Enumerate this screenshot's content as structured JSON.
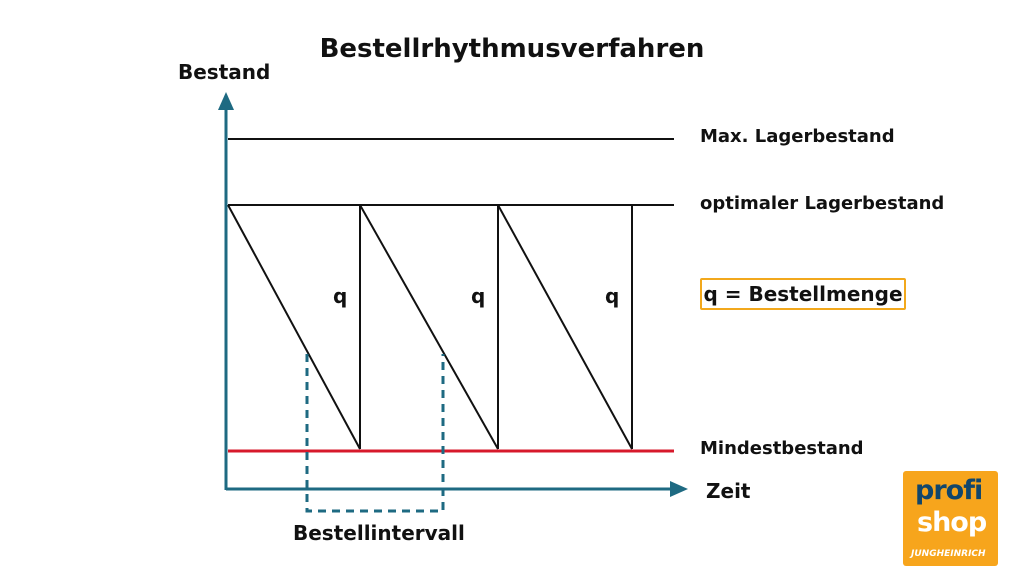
{
  "title": "Bestellrhythmusverfahren",
  "axes": {
    "y_label": "Bestand",
    "x_label": "Zeit"
  },
  "levels": {
    "max": "Max. Lagerbestand",
    "optimal": "optimaler Lagerbestand",
    "minimum": "Mindestbestand"
  },
  "cycle_labels": [
    "q",
    "q",
    "q"
  ],
  "legend": "q = Bestellmenge",
  "interval_label": "Bestellintervall",
  "logo": {
    "line1": "profi",
    "line2": "shop",
    "line3": "JUNGHEINRICH"
  },
  "colors": {
    "axis": "#1e6a82",
    "minimum_line": "#d7192b",
    "interval_dash": "#1e6a82",
    "legend_border": "#f2a81c",
    "logo_bg": "#f7a51c",
    "logo_text_dark": "#11466b"
  }
}
